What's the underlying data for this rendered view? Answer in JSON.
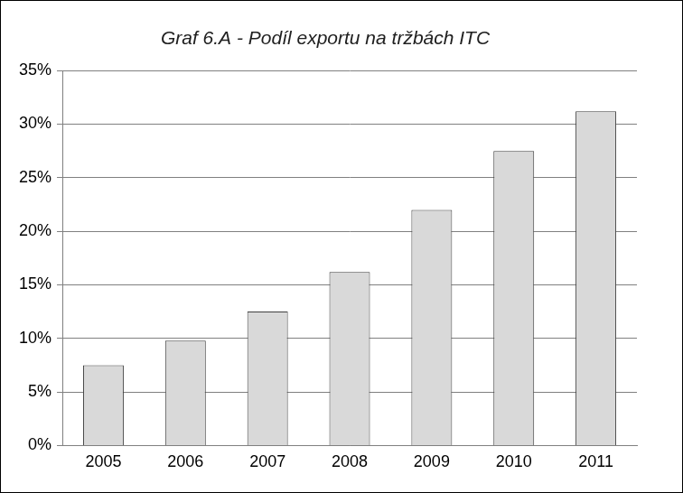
{
  "chart_data": {
    "type": "bar",
    "title": "Graf 6.A - Podíl exportu na tržbách ITC",
    "categories": [
      "2005",
      "2006",
      "2007",
      "2008",
      "2009",
      "2010",
      "2011"
    ],
    "values": [
      7.5,
      9.8,
      12.5,
      16.2,
      22.0,
      27.5,
      31.2
    ],
    "color": "#d9d9d9",
    "ylim": [
      0,
      35
    ],
    "yticks": [
      {
        "value": 0,
        "label": "0%"
      },
      {
        "value": 5,
        "label": "5%"
      },
      {
        "value": 10,
        "label": "10%"
      },
      {
        "value": 15,
        "label": "15%"
      },
      {
        "value": 20,
        "label": "20%"
      },
      {
        "value": 25,
        "label": "25%"
      },
      {
        "value": 30,
        "label": "30%"
      },
      {
        "value": 35,
        "label": "35%"
      }
    ],
    "grid": true
  }
}
